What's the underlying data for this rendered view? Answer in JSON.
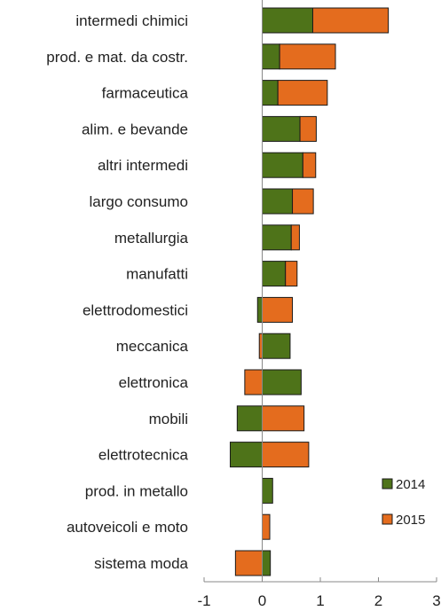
{
  "chart_data": {
    "type": "bar",
    "orientation": "horizontal",
    "stacked": true,
    "title": "",
    "xlabel": "",
    "ylabel": "",
    "xlim": [
      -1,
      3
    ],
    "xticks": [
      -1,
      0,
      1,
      2,
      3
    ],
    "xtick_labels": [
      "-1",
      "0",
      "1",
      "2",
      "3"
    ],
    "grid": false,
    "legend_position": "right",
    "categories": [
      "intermedi chimici",
      "prod. e mat. da costr.",
      "farmaceutica",
      "alim. e bevande",
      "altri intermedi",
      "largo consumo",
      "metallurgia",
      "manufatti",
      "elettrodomestici",
      "meccanica",
      "elettronica",
      "mobili",
      "elettrotecnica",
      "prod. in metallo",
      "autoveicoli e moto",
      "sistema moda"
    ],
    "series": [
      {
        "name": "2014",
        "color": "#4e7319",
        "values": [
          0.87,
          0.3,
          0.27,
          0.65,
          0.7,
          0.52,
          0.5,
          0.4,
          -0.08,
          0.48,
          0.67,
          -0.43,
          -0.55,
          0.18,
          0.0,
          0.14
        ]
      },
      {
        "name": "2015",
        "color": "#e46c1e",
        "values": [
          1.3,
          0.96,
          0.85,
          0.28,
          0.22,
          0.36,
          0.14,
          0.2,
          0.52,
          -0.05,
          -0.3,
          0.72,
          0.8,
          0.0,
          0.13,
          -0.46
        ]
      }
    ]
  }
}
